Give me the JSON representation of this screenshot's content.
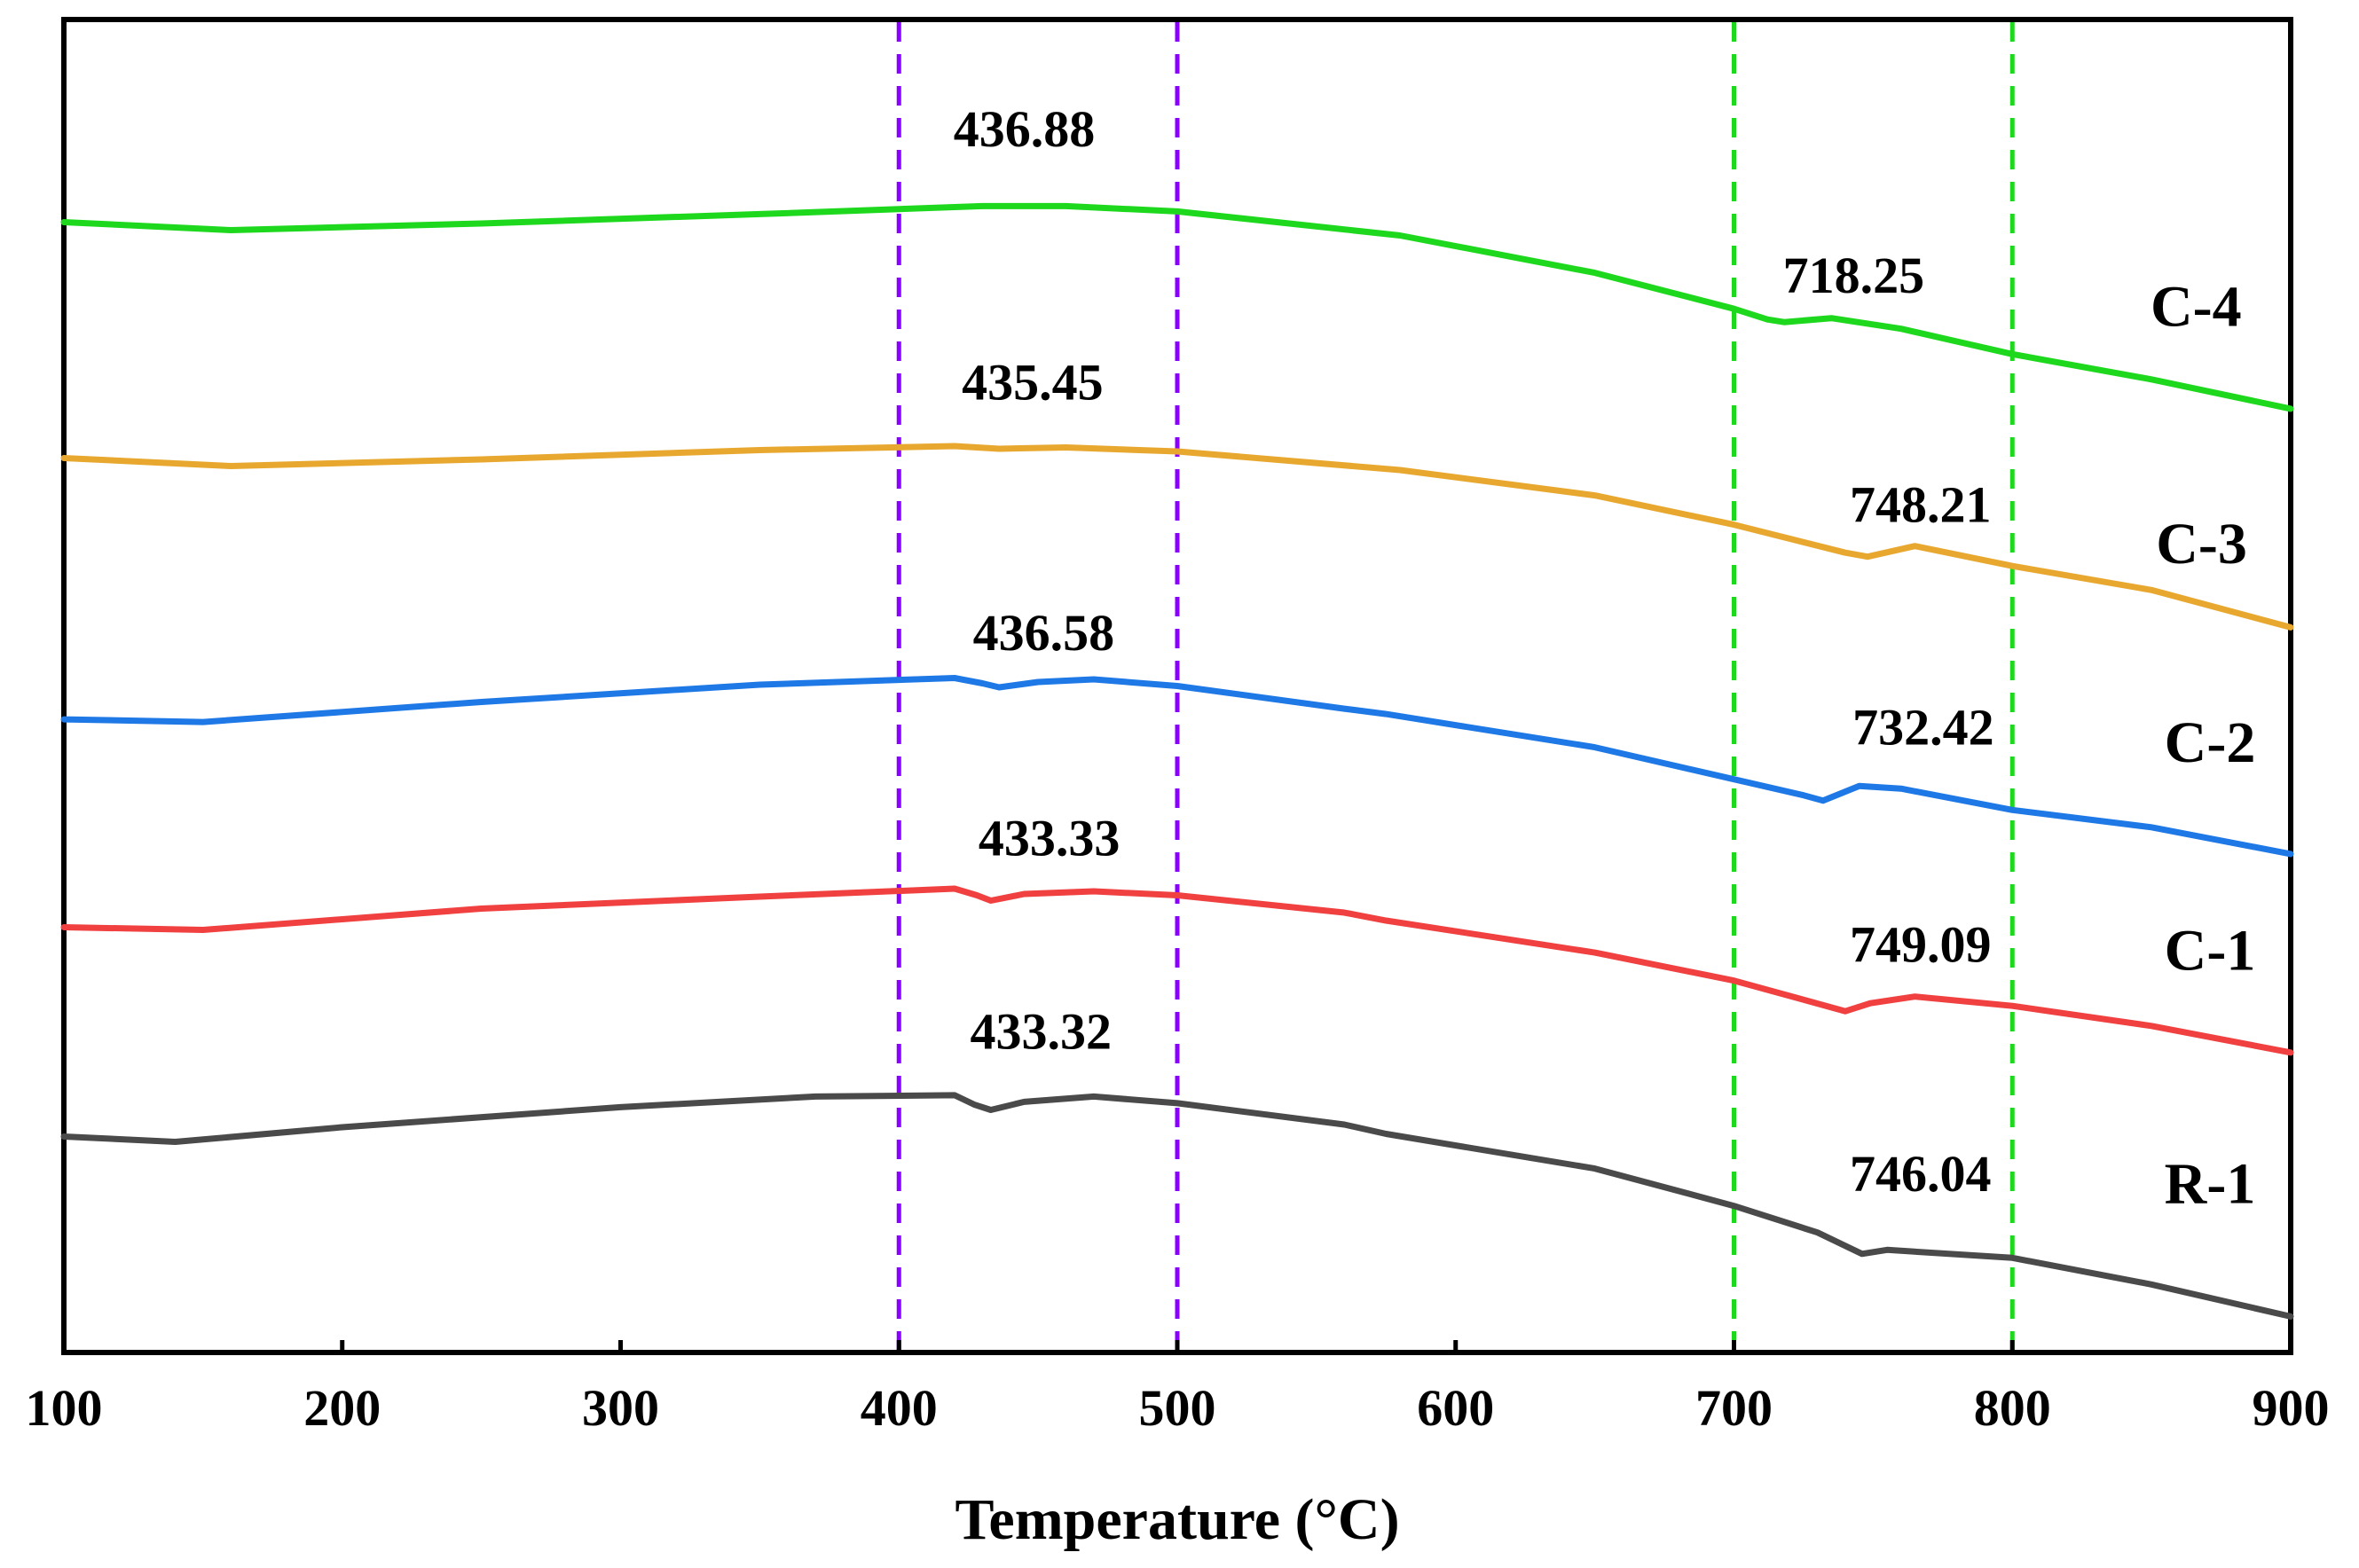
{
  "chart_data": {
    "type": "line",
    "title": "",
    "xlabel": "Temperature (°C)",
    "ylabel": "",
    "xlim": [
      100,
      900
    ],
    "ylim": [
      0,
      100
    ],
    "xticks": [
      "100",
      "200",
      "300",
      "400",
      "500",
      "600",
      "700",
      "800",
      "900"
    ],
    "grid": false,
    "legend": "inline labels at right",
    "reference_lines": [
      {
        "x": 400,
        "color": "#8a00ff",
        "style": "dashed"
      },
      {
        "x": 500,
        "color": "#8a00ff",
        "style": "dashed"
      },
      {
        "x": 700,
        "color": "#1ed81e",
        "style": "dashed"
      },
      {
        "x": 800,
        "color": "#1ed81e",
        "style": "dashed"
      }
    ],
    "series": [
      {
        "name": "C-4",
        "color": "#1ed81e",
        "points": [
          [
            100,
            84.8
          ],
          [
            160,
            84.2
          ],
          [
            250,
            84.7
          ],
          [
            350,
            85.4
          ],
          [
            430,
            86.0
          ],
          [
            460,
            86.0
          ],
          [
            500,
            85.6
          ],
          [
            580,
            83.8
          ],
          [
            650,
            81.0
          ],
          [
            700,
            78.3
          ],
          [
            712,
            77.5
          ],
          [
            718,
            77.3
          ],
          [
            735,
            77.6
          ],
          [
            760,
            76.8
          ],
          [
            800,
            74.9
          ],
          [
            850,
            73.0
          ],
          [
            900,
            70.8
          ]
        ],
        "peaks": [
          {
            "x": 436.88,
            "label": "436.88"
          },
          {
            "x": 718.25,
            "label": "718.25"
          }
        ]
      },
      {
        "name": "C-3",
        "color": "#e8a830",
        "points": [
          [
            100,
            67.1
          ],
          [
            160,
            66.5
          ],
          [
            250,
            67.0
          ],
          [
            350,
            67.7
          ],
          [
            420,
            68.0
          ],
          [
            436,
            67.8
          ],
          [
            460,
            67.9
          ],
          [
            500,
            67.6
          ],
          [
            580,
            66.2
          ],
          [
            650,
            64.3
          ],
          [
            700,
            62.1
          ],
          [
            740,
            60.0
          ],
          [
            748,
            59.7
          ],
          [
            765,
            60.5
          ],
          [
            800,
            59.0
          ],
          [
            850,
            57.2
          ],
          [
            900,
            54.4
          ]
        ],
        "peaks": [
          {
            "x": 435.45,
            "label": "435.45"
          },
          {
            "x": 748.21,
            "label": "748.21"
          }
        ]
      },
      {
        "name": "C-2",
        "color": "#1e78e6",
        "points": [
          [
            100,
            47.5
          ],
          [
            150,
            47.3
          ],
          [
            250,
            48.8
          ],
          [
            350,
            50.1
          ],
          [
            420,
            50.6
          ],
          [
            430,
            50.2
          ],
          [
            436,
            49.9
          ],
          [
            450,
            50.3
          ],
          [
            470,
            50.5
          ],
          [
            500,
            50.0
          ],
          [
            560,
            48.3
          ],
          [
            575,
            47.9
          ],
          [
            650,
            45.4
          ],
          [
            700,
            43.0
          ],
          [
            725,
            41.8
          ],
          [
            732,
            41.4
          ],
          [
            745,
            42.5
          ],
          [
            760,
            42.3
          ],
          [
            800,
            40.7
          ],
          [
            850,
            39.4
          ],
          [
            900,
            37.4
          ]
        ],
        "peaks": [
          {
            "x": 436.58,
            "label": "436.58"
          },
          {
            "x": 732.42,
            "label": "732.42"
          }
        ]
      },
      {
        "name": "C-1",
        "color": "#f04040",
        "points": [
          [
            100,
            31.9
          ],
          [
            150,
            31.7
          ],
          [
            250,
            33.3
          ],
          [
            350,
            34.2
          ],
          [
            420,
            34.8
          ],
          [
            428,
            34.3
          ],
          [
            433,
            33.9
          ],
          [
            445,
            34.4
          ],
          [
            470,
            34.6
          ],
          [
            500,
            34.3
          ],
          [
            560,
            33.0
          ],
          [
            575,
            32.4
          ],
          [
            650,
            30.0
          ],
          [
            700,
            27.9
          ],
          [
            740,
            25.6
          ],
          [
            749,
            26.2
          ],
          [
            765,
            26.7
          ],
          [
            800,
            26.0
          ],
          [
            850,
            24.5
          ],
          [
            900,
            22.5
          ]
        ],
        "peaks": [
          {
            "x": 433.33,
            "label": "433.33"
          },
          {
            "x": 749.09,
            "label": "749.09"
          }
        ]
      },
      {
        "name": "R-1",
        "color": "#4a4a4a",
        "points": [
          [
            100,
            16.2
          ],
          [
            140,
            15.8
          ],
          [
            200,
            16.9
          ],
          [
            300,
            18.4
          ],
          [
            370,
            19.2
          ],
          [
            420,
            19.3
          ],
          [
            427,
            18.6
          ],
          [
            433,
            18.2
          ],
          [
            445,
            18.8
          ],
          [
            470,
            19.2
          ],
          [
            500,
            18.7
          ],
          [
            560,
            17.1
          ],
          [
            575,
            16.4
          ],
          [
            650,
            13.8
          ],
          [
            700,
            11.0
          ],
          [
            730,
            9.0
          ],
          [
            746,
            7.4
          ],
          [
            755,
            7.7
          ],
          [
            800,
            7.1
          ],
          [
            850,
            5.1
          ],
          [
            900,
            2.7
          ]
        ],
        "peaks": [
          {
            "x": 433.32,
            "label": "433.32"
          },
          {
            "x": 746.04,
            "label": "746.04"
          }
        ]
      }
    ]
  },
  "labels": {
    "peak_labels": [
      {
        "text": "436.88",
        "pos_x": 445,
        "pos_y": 90.5
      },
      {
        "text": "718.25",
        "pos_x": 743,
        "pos_y": 79.5
      },
      {
        "text": "435.45",
        "pos_x": 448,
        "pos_y": 71.5
      },
      {
        "text": "748.21",
        "pos_x": 767,
        "pos_y": 62.3
      },
      {
        "text": "436.58",
        "pos_x": 452,
        "pos_y": 52.7
      },
      {
        "text": "732.42",
        "pos_x": 768,
        "pos_y": 45.6
      },
      {
        "text": "433.33",
        "pos_x": 454,
        "pos_y": 37.3
      },
      {
        "text": "749.09",
        "pos_x": 767,
        "pos_y": 29.3
      },
      {
        "text": "433.32",
        "pos_x": 451,
        "pos_y": 22.8
      },
      {
        "text": "746.04",
        "pos_x": 767,
        "pos_y": 12.1
      }
    ],
    "series_labels": [
      {
        "text": "C-4",
        "pos_x": 866,
        "pos_y": 77.0
      },
      {
        "text": "C-3",
        "pos_x": 868,
        "pos_y": 59.2
      },
      {
        "text": "C-2",
        "pos_x": 871,
        "pos_y": 44.3
      },
      {
        "text": "C-1",
        "pos_x": 871,
        "pos_y": 28.7
      },
      {
        "text": "R-1",
        "pos_x": 871,
        "pos_y": 11.2
      }
    ]
  }
}
